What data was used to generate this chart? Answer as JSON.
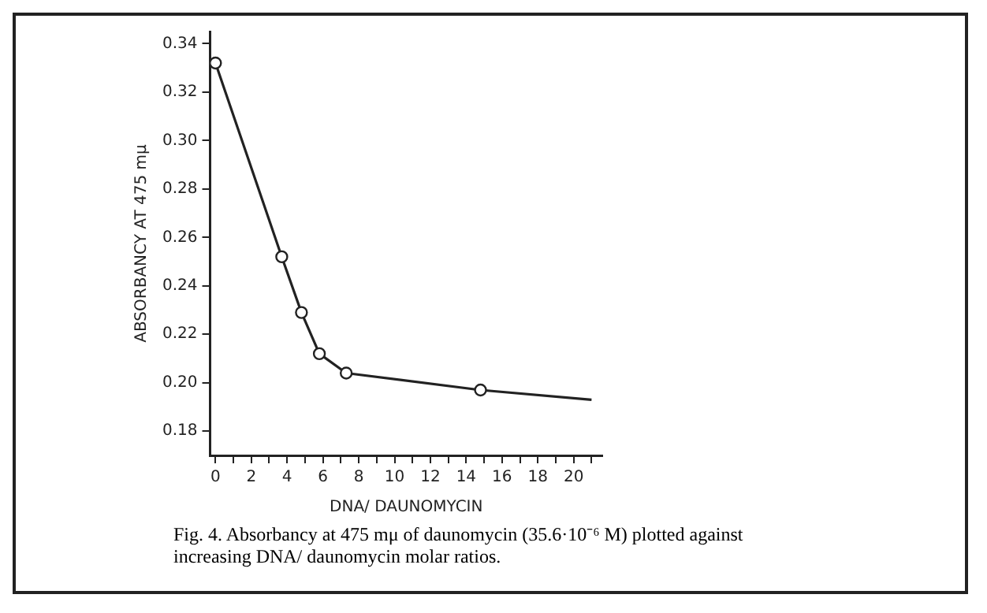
{
  "chart_data": {
    "type": "line",
    "xlabel": "DNA/ DAUNOMYCIN",
    "ylabel": "ABSORBANCY AT 475 mμ",
    "annotations": [
      "Fig. 4. Absorbancy at 475 mμ of daunomycin (35.6·10⁻⁶ M) plotted against increasing DNA/ daunomycin molar ratios."
    ],
    "series": [
      {
        "color": "#222222",
        "marker": "none",
        "x": [
          0,
          3.7,
          4.8,
          5.8,
          7.3,
          14.8,
          21
        ],
        "values": [
          0.332,
          0.252,
          0.229,
          0.212,
          0.204,
          0.197,
          0.193
        ]
      },
      {
        "type": "scatter",
        "color": "#222222",
        "marker": "circle",
        "x": [
          0,
          3.7,
          4.8,
          5.8,
          7.3,
          14.8
        ],
        "values": [
          0.332,
          0.252,
          0.229,
          0.212,
          0.204,
          0.197
        ]
      }
    ],
    "xlim": [
      -0.3,
      21.6
    ],
    "ylim": [
      0.17,
      0.345
    ],
    "xticks": [
      0,
      {
        "value": 1,
        "label": null
      },
      2,
      {
        "value": 3,
        "label": null
      },
      4,
      {
        "value": 5,
        "label": null
      },
      6,
      {
        "value": 7,
        "label": null
      },
      8,
      {
        "value": 9,
        "label": null
      },
      10,
      {
        "value": 11,
        "label": null
      },
      12,
      {
        "value": 13,
        "label": null
      },
      14,
      {
        "value": 15,
        "label": null
      },
      16,
      {
        "value": 17,
        "label": null
      },
      18,
      {
        "value": 19,
        "label": null
      },
      20,
      {
        "value": 21,
        "label": null
      }
    ],
    "yticks": [
      0.18,
      {
        "value": 0.2,
        "label": "0.20"
      },
      0.22,
      0.24,
      0.26,
      0.28,
      {
        "value": 0.3,
        "label": "0.30"
      },
      0.32,
      0.34
    ],
    "grid": false,
    "legend": false
  }
}
